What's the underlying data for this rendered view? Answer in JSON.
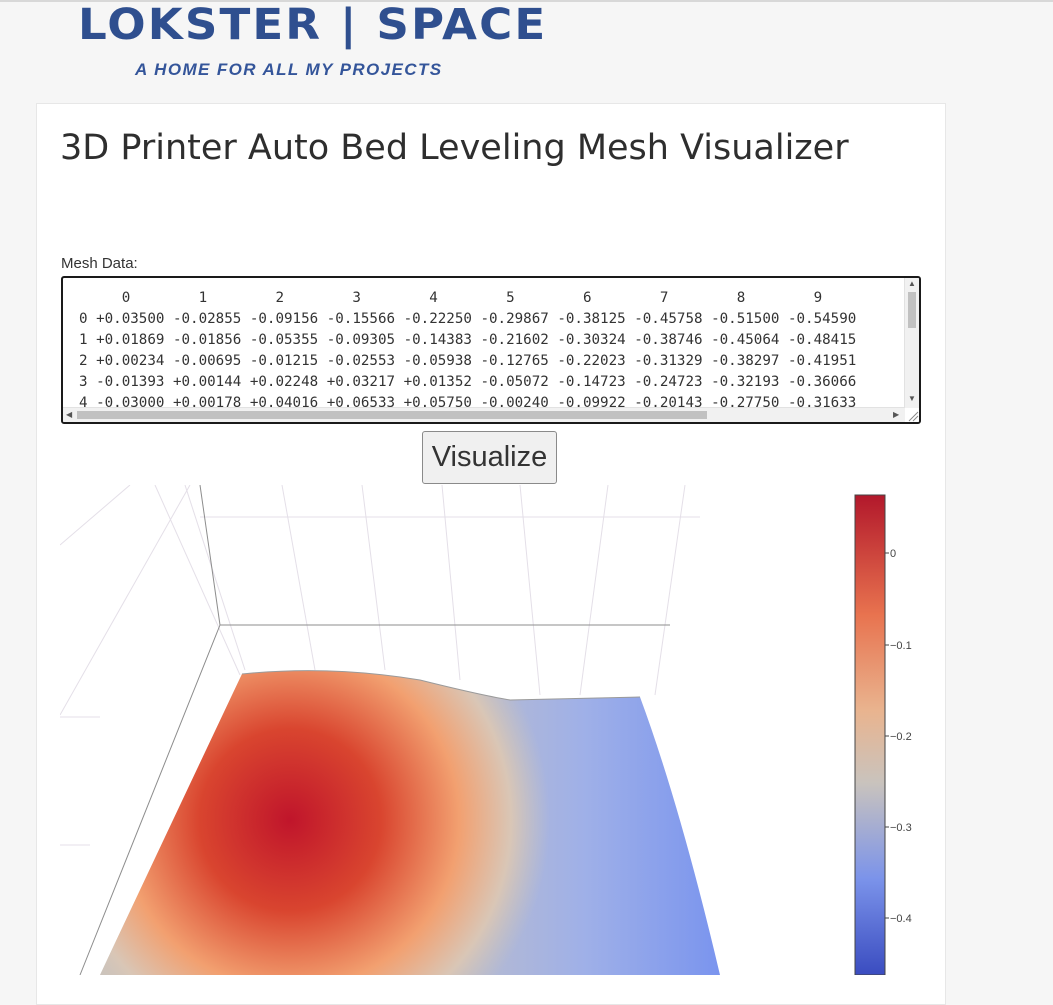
{
  "site": {
    "brand": "LOKSTER | SPACE",
    "tagline": "A HOME FOR ALL MY PROJECTS"
  },
  "page": {
    "title": "3D Printer Auto Bed Leveling Mesh Visualizer"
  },
  "mesh_input": {
    "label": "Mesh Data:",
    "header": "     0        1        2        3        4        5        6        7        8        9",
    "rows": [
      "0 +0.03500 -0.02855 -0.09156 -0.15566 -0.22250 -0.29867 -0.38125 -0.45758 -0.51500 -0.54590",
      "1 +0.01869 -0.01856 -0.05355 -0.09305 -0.14383 -0.21602 -0.30324 -0.38746 -0.45064 -0.48415",
      "2 +0.00234 -0.00695 -0.01215 -0.02553 -0.05938 -0.12765 -0.22023 -0.31329 -0.38297 -0.41951",
      "3 -0.01393 +0.00144 +0.02248 +0.03217 +0.01352 -0.05072 -0.14723 -0.24723 -0.32193 -0.36066",
      "4 -0.03000 +0.00178 +0.04016 +0.06533 +0.05750 -0.00240 -0.09922 -0.20143 -0.27750 -0.31633"
    ]
  },
  "actions": {
    "visualize_label": "Visualize"
  },
  "colorscale": {
    "ticks": [
      "0",
      "−0.1",
      "−0.2",
      "−0.3",
      "−0.4"
    ],
    "top_color": "#b2182b",
    "mid_color": "#c9c3bd",
    "bottom_color": "#3a4cc0"
  }
}
